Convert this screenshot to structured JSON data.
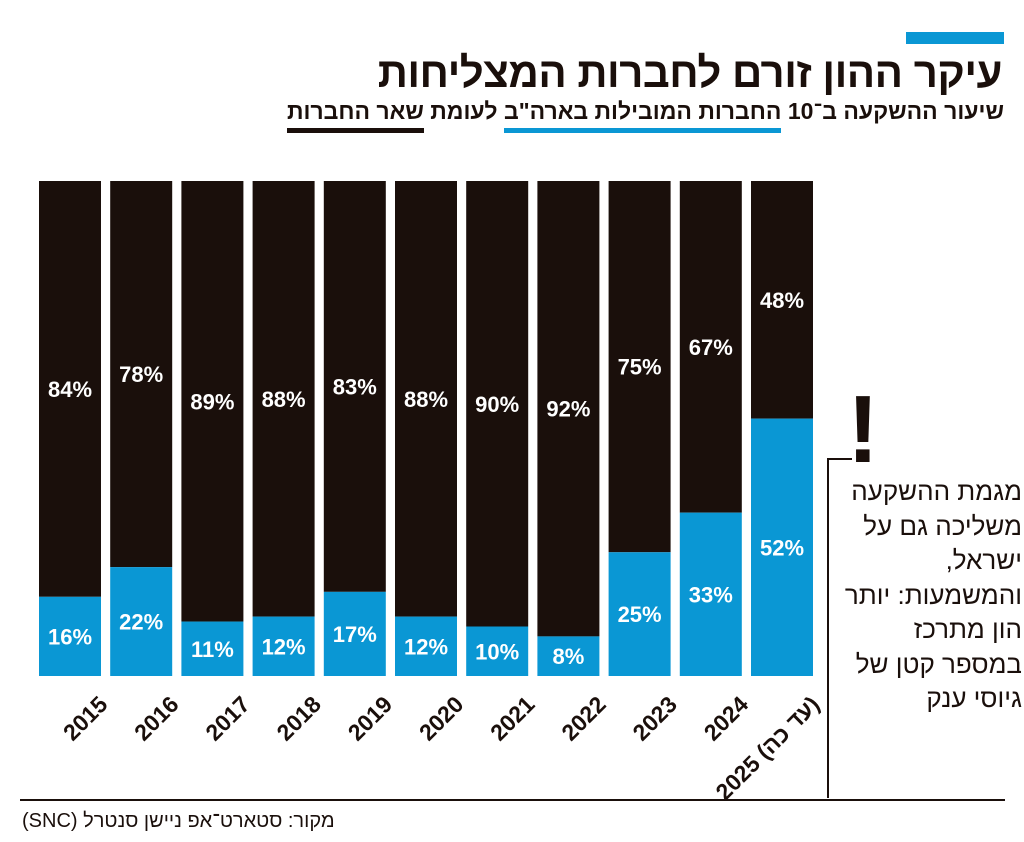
{
  "header": {
    "title": "עיקר ההון זורם לחברות המצליחות",
    "subtitle_part1": "שיעור ההשקעה ב־10 ",
    "subtitle_part2": "החברות המובילות בארה\"ב",
    "subtitle_part3": " לעומת ",
    "subtitle_part4": "שאר החברות"
  },
  "annotation": {
    "mark": "!",
    "text": "מגמת ההשקעה משליכה גם על ישראל, והמשמעות: יותר הון מתרכז במספר קטן של גיוסי ענק"
  },
  "source": "מקור: סטארט־אפ ניישן סנטרל (SNC)",
  "colors": {
    "top10": "#0a97d4",
    "rest": "#1a0f0b",
    "text": "#1a0f0b",
    "label": "#ffffff"
  },
  "chart_data": {
    "type": "bar",
    "stacked": true,
    "normalized_percent": true,
    "title": "עיקר ההון זורם לחברות המצליחות",
    "xlabel": "",
    "ylabel": "",
    "ylim": [
      0,
      100
    ],
    "categories": [
      "2015",
      "2016",
      "2017",
      "2018",
      "2019",
      "2020",
      "2021",
      "2022",
      "2023",
      "2024",
      "2025 (עד כה)"
    ],
    "series": [
      {
        "name": "החברות המובילות בארה\"ב",
        "color": "#0a97d4",
        "values": [
          16,
          22,
          11,
          12,
          17,
          12,
          10,
          8,
          25,
          33,
          52
        ]
      },
      {
        "name": "שאר החברות",
        "color": "#1a0f0b",
        "values": [
          84,
          78,
          89,
          88,
          83,
          88,
          90,
          92,
          75,
          67,
          48
        ]
      }
    ],
    "grid": false,
    "legend": "subtitle"
  }
}
